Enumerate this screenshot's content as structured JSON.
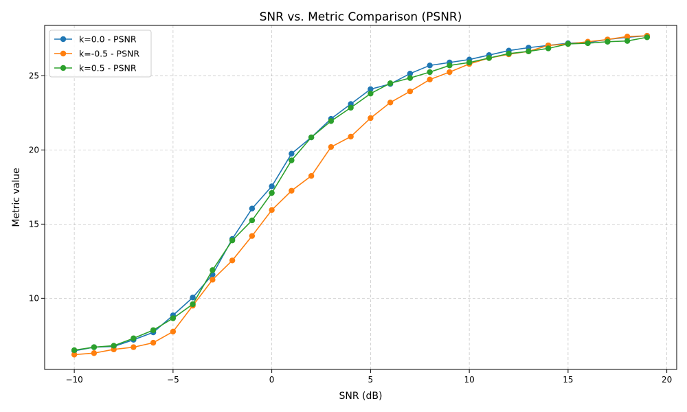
{
  "chart_data": {
    "type": "line",
    "title": "SNR vs. Metric Comparison (PSNR)",
    "xlabel": "SNR (dB)",
    "ylabel": "Metric value",
    "xlim": [
      -11.5,
      20.5
    ],
    "ylim": [
      5.2,
      28.4
    ],
    "x_ticks": [
      -10,
      -5,
      0,
      5,
      10,
      15,
      20
    ],
    "y_ticks": [
      10,
      15,
      20,
      25
    ],
    "x_tick_labels": [
      "−10",
      "−5",
      "0",
      "5",
      "10",
      "15",
      "20"
    ],
    "y_tick_labels": [
      "10",
      "15",
      "20",
      "25"
    ],
    "grid": true,
    "legend_position": "top-left",
    "x": [
      -10,
      -9,
      -8,
      -7,
      -6,
      -5,
      -4,
      -3,
      -2,
      -1,
      0,
      1,
      2,
      3,
      4,
      5,
      6,
      7,
      8,
      9,
      10,
      11,
      12,
      13,
      14,
      15,
      16,
      17,
      18,
      19
    ],
    "series": [
      {
        "name": "k=0.0 - PSNR",
        "color": "#1f77b4",
        "values": [
          6.45,
          6.7,
          6.75,
          7.2,
          7.7,
          8.85,
          10.05,
          11.6,
          14.0,
          16.05,
          17.55,
          19.75,
          20.85,
          22.1,
          23.1,
          24.1,
          24.45,
          25.15,
          25.7,
          25.9,
          26.1,
          26.4,
          26.7,
          26.9,
          27.05,
          27.2,
          27.25,
          27.45,
          27.6,
          27.7
        ]
      },
      {
        "name": "k=-0.5 - PSNR",
        "color": "#ff7f0e",
        "values": [
          6.2,
          6.3,
          6.55,
          6.7,
          7.0,
          7.75,
          9.5,
          11.25,
          12.55,
          14.2,
          15.95,
          17.25,
          18.25,
          20.2,
          20.9,
          22.15,
          23.2,
          23.95,
          24.75,
          25.25,
          25.8,
          26.2,
          26.45,
          26.65,
          27.05,
          27.15,
          27.3,
          27.45,
          27.65,
          27.7
        ]
      },
      {
        "name": "k=0.5 - PSNR",
        "color": "#2ca02c",
        "values": [
          6.5,
          6.7,
          6.8,
          7.3,
          7.85,
          8.65,
          9.6,
          11.9,
          13.9,
          15.25,
          17.1,
          19.3,
          20.85,
          21.95,
          22.85,
          23.8,
          24.5,
          24.85,
          25.25,
          25.7,
          25.9,
          26.2,
          26.5,
          26.65,
          26.85,
          27.15,
          27.2,
          27.3,
          27.35,
          27.6
        ]
      }
    ]
  }
}
